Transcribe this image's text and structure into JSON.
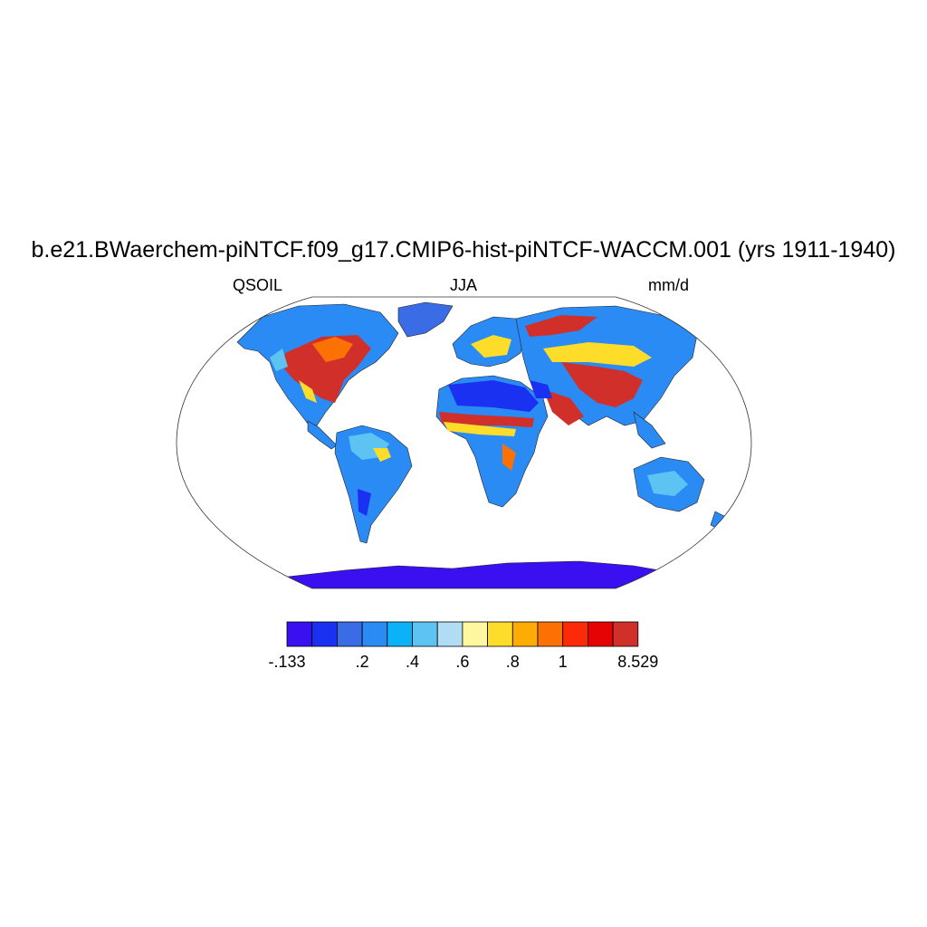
{
  "title": "b.e21.BWaerchem-piNTCF.f09_g17.CMIP6-hist-piNTCF-WACCM.001 (yrs 1911-1940)",
  "subtitle_left": "QSOIL",
  "subtitle_center": "JJA",
  "subtitle_right": "mm/d",
  "colorbar": {
    "colors": [
      "#3a10f0",
      "#1a31f2",
      "#3a6ce6",
      "#2a8bf5",
      "#0cb2f7",
      "#5cc3f3",
      "#b2dcf3",
      "#fff6a0",
      "#fedc2a",
      "#fdab05",
      "#fc7103",
      "#fd2a0a",
      "#e60303",
      "#d1302a"
    ],
    "labels": [
      "-.133",
      "",
      ".2",
      ".4",
      ".6",
      ".8",
      "1",
      "",
      "8.529"
    ],
    "label_edges": [
      0,
      null,
      3,
      5,
      7,
      9,
      11,
      null,
      14
    ]
  },
  "map_colors": {
    "ocean": "#ffffff",
    "outline": "#222222"
  }
}
